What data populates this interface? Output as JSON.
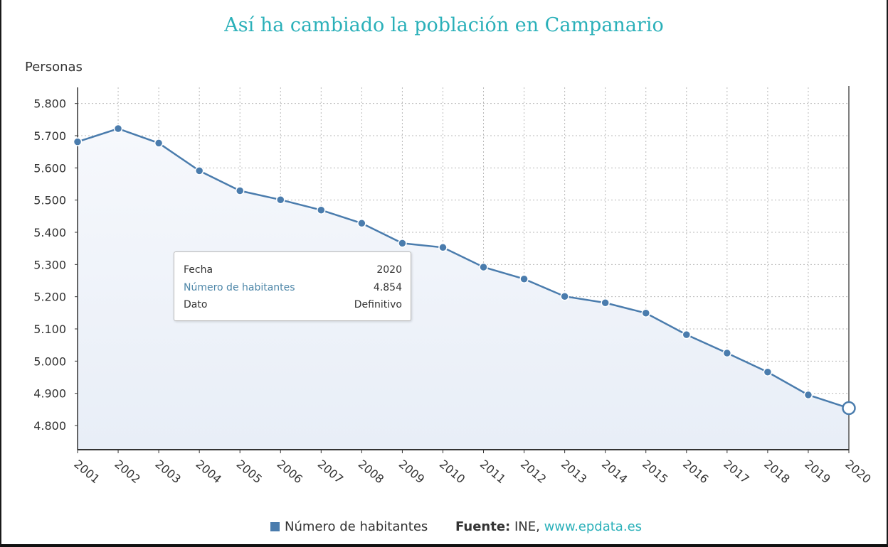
{
  "chart_data": {
    "type": "line",
    "title": "Así ha cambiado la población en Campanario",
    "ylabel": "Personas",
    "xlabel": "",
    "ylim": [
      4725,
      5850
    ],
    "y_ticks": [
      {
        "value": 4800,
        "label": "4.800"
      },
      {
        "value": 4900,
        "label": "4.900"
      },
      {
        "value": 5000,
        "label": "5.000"
      },
      {
        "value": 5100,
        "label": "5.100"
      },
      {
        "value": 5200,
        "label": "5.200"
      },
      {
        "value": 5300,
        "label": "5.300"
      },
      {
        "value": 5400,
        "label": "5.400"
      },
      {
        "value": 5500,
        "label": "5.500"
      },
      {
        "value": 5600,
        "label": "5.600"
      },
      {
        "value": 5700,
        "label": "5.700"
      },
      {
        "value": 5800,
        "label": "5.800"
      }
    ],
    "categories": [
      "2001",
      "2002",
      "2003",
      "2004",
      "2005",
      "2006",
      "2007",
      "2008",
      "2009",
      "2010",
      "2011",
      "2012",
      "2013",
      "2014",
      "2015",
      "2016",
      "2017",
      "2018",
      "2019",
      "2020"
    ],
    "series": [
      {
        "name": "Número de habitantes",
        "color": "#4a7cad",
        "values": [
          5681,
          5722,
          5677,
          5591,
          5529,
          5501,
          5469,
          5428,
          5366,
          5353,
          5292,
          5255,
          5201,
          5181,
          5149,
          5082,
          5025,
          4966,
          4895,
          4854
        ]
      }
    ],
    "grid": true,
    "legend": "bottom-center",
    "highlighted_index": 19
  },
  "tooltip": {
    "rows": [
      {
        "label": "Fecha",
        "value": "2020"
      },
      {
        "label": "Número de habitantes",
        "value": "4.854"
      },
      {
        "label": "Dato",
        "value": "Definitivo"
      }
    ]
  },
  "footer": {
    "legend_label": "Número de habitantes",
    "source_prefix": "Fuente:",
    "source_name": " INE, ",
    "source_link": "www.epdata.es"
  },
  "colors": {
    "title": "#2ab0b9",
    "line": "#4a7cad",
    "accent": "#4d86a8"
  }
}
